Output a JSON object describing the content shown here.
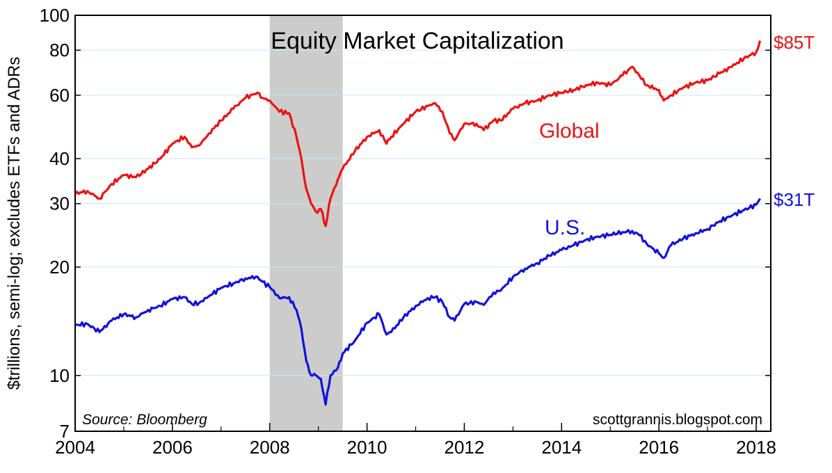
{
  "chart_data": {
    "type": "line",
    "title": "Equity Market Capitalization",
    "ylabel": "$trillions, semi-log; excludes ETFs and ADRs",
    "source": "Source: Bloomberg",
    "credit": "scottgrannis.blogspot.com",
    "yscale": "log",
    "ylim": [
      7,
      100
    ],
    "xlim": [
      2004,
      2018.3
    ],
    "y_ticks": [
      7,
      10,
      20,
      30,
      40,
      60,
      80,
      100
    ],
    "x_ticks": [
      2004,
      2006,
      2008,
      2010,
      2012,
      2014,
      2016,
      2018
    ],
    "grid": "horizontal",
    "recession_shading": [
      2008.0,
      2009.5
    ],
    "colors": {
      "global": "#ee1111",
      "us": "#1111dd",
      "shading": "#cccccc",
      "grid": "#cfe3f0"
    },
    "series": [
      {
        "name": "Global",
        "end_label": "$85T",
        "x": [
          2004.0,
          2004.25,
          2004.5,
          2004.75,
          2005.0,
          2005.25,
          2005.5,
          2005.75,
          2006.0,
          2006.25,
          2006.4,
          2006.55,
          2006.75,
          2007.0,
          2007.25,
          2007.5,
          2007.75,
          2007.85,
          2008.0,
          2008.2,
          2008.4,
          2008.55,
          2008.65,
          2008.75,
          2008.85,
          2008.95,
          2009.05,
          2009.15,
          2009.25,
          2009.4,
          2009.5,
          2009.75,
          2010.0,
          2010.25,
          2010.4,
          2010.5,
          2010.75,
          2011.0,
          2011.25,
          2011.4,
          2011.55,
          2011.7,
          2011.8,
          2012.0,
          2012.25,
          2012.4,
          2012.6,
          2012.75,
          2013.0,
          2013.25,
          2013.5,
          2013.75,
          2014.0,
          2014.25,
          2014.5,
          2014.75,
          2015.0,
          2015.25,
          2015.45,
          2015.6,
          2015.75,
          2016.0,
          2016.1,
          2016.25,
          2016.5,
          2016.75,
          2017.0,
          2017.25,
          2017.5,
          2017.75,
          2018.0,
          2018.08
        ],
        "values": [
          32,
          32.5,
          31,
          34,
          36,
          35.5,
          37.5,
          40,
          44,
          46,
          43,
          43.5,
          47,
          51,
          55,
          59,
          61,
          59,
          58,
          54,
          53.5,
          46,
          40,
          33,
          30,
          28.5,
          29,
          26,
          31,
          35,
          37.5,
          42,
          46,
          48,
          44,
          46,
          50,
          54,
          56,
          57,
          54,
          47,
          45,
          50,
          50,
          48,
          51,
          51,
          55,
          57,
          58,
          60,
          61,
          62,
          64,
          65,
          64,
          68,
          72,
          68,
          64,
          62,
          58,
          60,
          63,
          65,
          66,
          69,
          72,
          76,
          79,
          85
        ]
      },
      {
        "name": "U.S.",
        "end_label": "$31T",
        "x": [
          2004.0,
          2004.25,
          2004.5,
          2004.75,
          2005.0,
          2005.25,
          2005.5,
          2005.75,
          2006.0,
          2006.25,
          2006.4,
          2006.55,
          2006.75,
          2007.0,
          2007.25,
          2007.5,
          2007.75,
          2007.85,
          2008.0,
          2008.2,
          2008.4,
          2008.55,
          2008.65,
          2008.75,
          2008.85,
          2008.95,
          2009.05,
          2009.15,
          2009.25,
          2009.4,
          2009.5,
          2009.75,
          2010.0,
          2010.25,
          2010.4,
          2010.5,
          2010.75,
          2011.0,
          2011.25,
          2011.4,
          2011.55,
          2011.7,
          2011.8,
          2012.0,
          2012.25,
          2012.4,
          2012.6,
          2012.75,
          2013.0,
          2013.25,
          2013.5,
          2013.75,
          2014.0,
          2014.25,
          2014.5,
          2014.75,
          2015.0,
          2015.25,
          2015.45,
          2015.6,
          2015.75,
          2016.0,
          2016.1,
          2016.25,
          2016.5,
          2016.75,
          2017.0,
          2017.25,
          2017.5,
          2017.75,
          2018.0,
          2018.08
        ],
        "values": [
          13.8,
          13.9,
          13.2,
          14.2,
          14.8,
          14.5,
          15.2,
          15.6,
          16.3,
          16.5,
          15.8,
          15.9,
          16.6,
          17.5,
          18.0,
          18.6,
          18.8,
          18.2,
          17.6,
          16.4,
          16.5,
          15.2,
          13.5,
          11.0,
          10.0,
          10.0,
          9.8,
          8.3,
          10.0,
          10.5,
          11.5,
          12.5,
          14.0,
          14.8,
          13.0,
          13.2,
          14.5,
          15.6,
          16.4,
          16.5,
          16.0,
          14.5,
          14.2,
          15.8,
          16.0,
          15.7,
          17.0,
          17.2,
          18.8,
          19.8,
          20.5,
          21.5,
          22.3,
          23.0,
          23.8,
          24.3,
          24.6,
          25.0,
          25.2,
          24.5,
          23.2,
          21.8,
          21.2,
          23.0,
          24.0,
          24.8,
          25.5,
          26.8,
          27.8,
          28.8,
          29.8,
          31
        ]
      }
    ]
  }
}
